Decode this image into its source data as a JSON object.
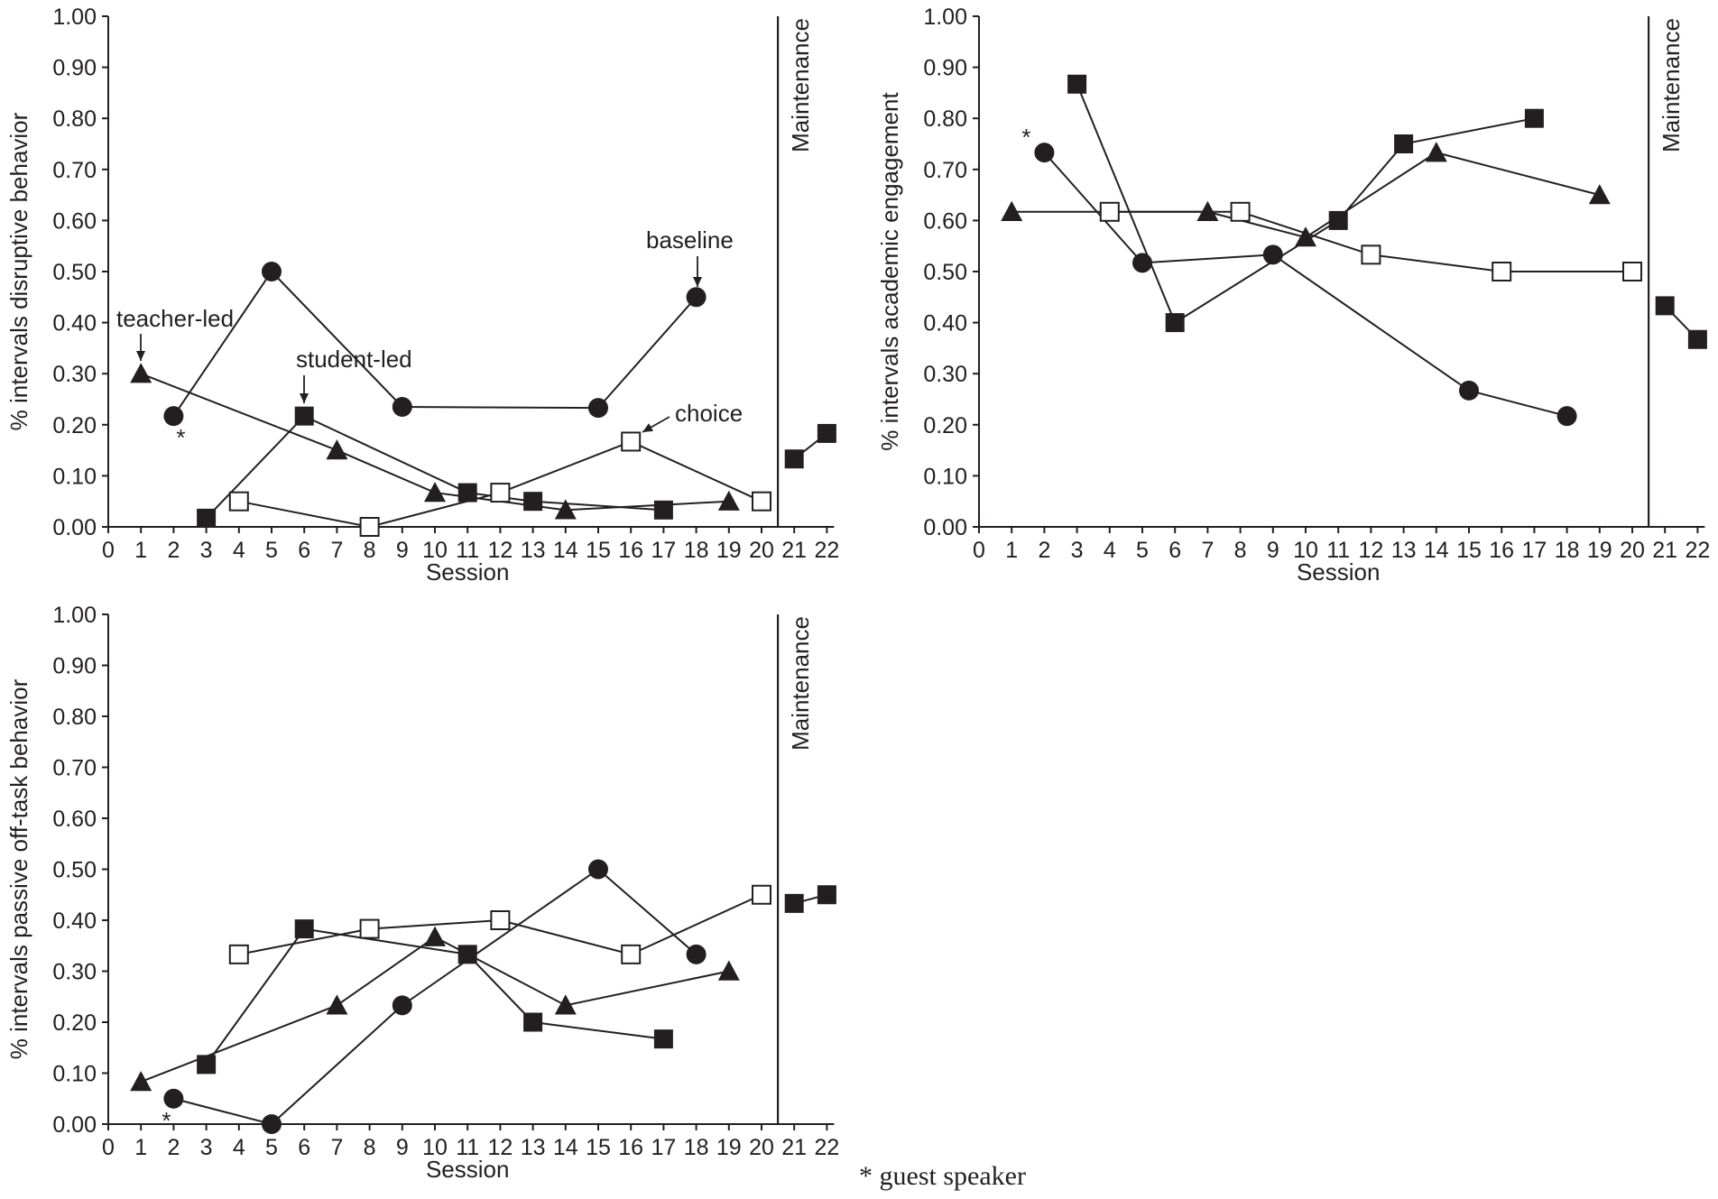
{
  "footnote": "* guest speaker",
  "colors": {
    "ink": "#231f20",
    "background": "#ffffff"
  },
  "chart_data": [
    {
      "type": "line",
      "panel": "top-left",
      "title": "",
      "ylabel": "% intervals disruptive behavior",
      "xlabel": "Session",
      "xlim": [
        0,
        22
      ],
      "ylim": [
        0,
        1
      ],
      "xticks": [
        0,
        1,
        2,
        3,
        4,
        5,
        6,
        7,
        8,
        9,
        10,
        11,
        12,
        13,
        14,
        15,
        16,
        17,
        18,
        19,
        20,
        21,
        22
      ],
      "yticks": [
        "0.00",
        "0.10",
        "0.20",
        "0.30",
        "0.40",
        "0.50",
        "0.60",
        "0.70",
        "0.80",
        "0.90",
        "1.00"
      ],
      "phase_line_x": 20.5,
      "phase_label": "Maintenance",
      "series": [
        {
          "name": "baseline",
          "marker": "circle",
          "x": [
            2,
            5,
            9,
            15,
            18
          ],
          "y": [
            0.217,
            0.5,
            0.235,
            0.233,
            0.45
          ]
        },
        {
          "name": "teacher-led",
          "marker": "triangle",
          "x": [
            1,
            7,
            10,
            14,
            19
          ],
          "y": [
            0.3,
            0.15,
            0.067,
            0.033,
            0.05
          ]
        },
        {
          "name": "student-led",
          "marker": "square",
          "x": [
            3,
            6,
            11,
            13,
            17
          ],
          "y": [
            0.017,
            0.217,
            0.067,
            0.05,
            0.033
          ]
        },
        {
          "name": "choice",
          "marker": "open-square",
          "x": [
            4,
            8,
            12,
            16,
            20
          ],
          "y": [
            0.05,
            0.0,
            0.067,
            0.167,
            0.05
          ]
        },
        {
          "name": "maintenance",
          "marker": "square",
          "x": [
            21,
            22
          ],
          "y": [
            0.133,
            0.183
          ]
        }
      ],
      "annotations": [
        {
          "text": "teacher-led",
          "x": 1,
          "y": 0.3,
          "target": "teacher-led"
        },
        {
          "text": "student-led",
          "x": 6,
          "y": 0.217,
          "target": "student-led"
        },
        {
          "text": "baseline",
          "x": 18,
          "y": 0.45,
          "target": "baseline"
        },
        {
          "text": "choice",
          "x": 16,
          "y": 0.167,
          "target": "choice"
        },
        {
          "text": "*",
          "x": 2,
          "y": 0.217,
          "target": "guest-speaker"
        }
      ]
    },
    {
      "type": "line",
      "panel": "top-right",
      "title": "",
      "ylabel": "% intervals academic engagement",
      "xlabel": "Session",
      "xlim": [
        0,
        22
      ],
      "ylim": [
        0,
        1
      ],
      "xticks": [
        0,
        1,
        2,
        3,
        4,
        5,
        6,
        7,
        8,
        9,
        10,
        11,
        12,
        13,
        14,
        15,
        16,
        17,
        18,
        19,
        20,
        21,
        22
      ],
      "yticks": [
        "0.00",
        "0.10",
        "0.20",
        "0.30",
        "0.40",
        "0.50",
        "0.60",
        "0.70",
        "0.80",
        "0.90",
        "1.00"
      ],
      "phase_line_x": 20.5,
      "phase_label": "Maintenance",
      "series": [
        {
          "name": "baseline",
          "marker": "circle",
          "x": [
            2,
            5,
            9,
            15,
            18
          ],
          "y": [
            0.733,
            0.517,
            0.533,
            0.267,
            0.217
          ]
        },
        {
          "name": "teacher-led",
          "marker": "triangle",
          "x": [
            1,
            7,
            10,
            14,
            19
          ],
          "y": [
            0.617,
            0.617,
            0.567,
            0.733,
            0.65
          ]
        },
        {
          "name": "student-led",
          "marker": "square",
          "x": [
            3,
            6,
            11,
            13,
            17
          ],
          "y": [
            0.867,
            0.4,
            0.6,
            0.75,
            0.8
          ]
        },
        {
          "name": "choice",
          "marker": "open-square",
          "x": [
            4,
            8,
            12,
            16,
            20
          ],
          "y": [
            0.617,
            0.617,
            0.533,
            0.5,
            0.5
          ]
        },
        {
          "name": "maintenance",
          "marker": "square",
          "x": [
            21,
            22
          ],
          "y": [
            0.433,
            0.367
          ]
        }
      ],
      "annotations": [
        {
          "text": "*",
          "x": 2,
          "y": 0.733,
          "target": "guest-speaker"
        }
      ]
    },
    {
      "type": "line",
      "panel": "bottom-left",
      "title": "",
      "ylabel": "% intervals passive off-task behavior",
      "xlabel": "Session",
      "xlim": [
        0,
        22
      ],
      "ylim": [
        0,
        1
      ],
      "xticks": [
        0,
        1,
        2,
        3,
        4,
        5,
        6,
        7,
        8,
        9,
        10,
        11,
        12,
        13,
        14,
        15,
        16,
        17,
        18,
        19,
        20,
        21,
        22
      ],
      "yticks": [
        "0.00",
        "0.10",
        "0.20",
        "0.30",
        "0.40",
        "0.50",
        "0.60",
        "0.70",
        "0.80",
        "0.90",
        "1.00"
      ],
      "phase_line_x": 20.5,
      "phase_label": "Maintenance",
      "series": [
        {
          "name": "baseline",
          "marker": "circle",
          "x": [
            2,
            5,
            9,
            15,
            18
          ],
          "y": [
            0.05,
            0.0,
            0.233,
            0.5,
            0.333
          ]
        },
        {
          "name": "teacher-led",
          "marker": "triangle",
          "x": [
            1,
            7,
            10,
            14,
            19
          ],
          "y": [
            0.083,
            0.233,
            0.367,
            0.233,
            0.3
          ]
        },
        {
          "name": "student-led",
          "marker": "square",
          "x": [
            3,
            6,
            11,
            13,
            17
          ],
          "y": [
            0.117,
            0.383,
            0.333,
            0.2,
            0.167
          ]
        },
        {
          "name": "choice",
          "marker": "open-square",
          "x": [
            4,
            8,
            12,
            16,
            20
          ],
          "y": [
            0.333,
            0.383,
            0.4,
            0.333,
            0.45
          ]
        },
        {
          "name": "maintenance",
          "marker": "square",
          "x": [
            21,
            22
          ],
          "y": [
            0.433,
            0.45
          ]
        }
      ],
      "annotations": [
        {
          "text": "*",
          "x": 2,
          "y": 0.05,
          "target": "guest-speaker"
        }
      ]
    }
  ]
}
